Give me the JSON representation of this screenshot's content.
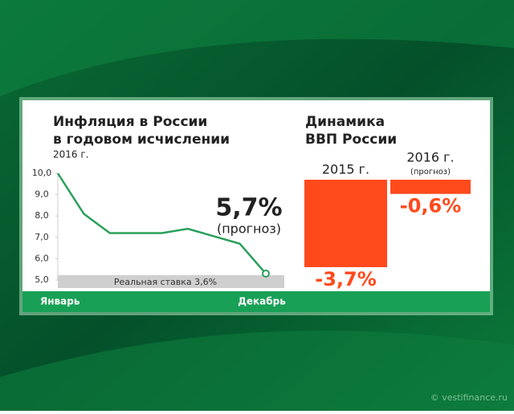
{
  "chart_data": [
    {
      "type": "line",
      "title": [
        "Инфляция в России",
        "в годовом исчислении"
      ],
      "subtitle": "2016 г.",
      "categories": [
        "Январь",
        null,
        null,
        null,
        null,
        null,
        null,
        null,
        "Декабрь"
      ],
      "values": [
        10.0,
        8.1,
        7.2,
        7.2,
        7.2,
        7.4,
        7.05,
        6.7,
        5.3
      ],
      "color": "#2aa05c",
      "ylim": [
        5,
        10
      ],
      "yticks": [
        {
          "value": 10,
          "label": "10,0"
        },
        {
          "value": 9,
          "label": "9,0"
        },
        {
          "value": 8,
          "label": "8,0"
        },
        {
          "value": 7,
          "label": "7,0"
        },
        {
          "value": 6,
          "label": "6,0"
        },
        {
          "value": 5,
          "label": "5,0"
        }
      ],
      "annotations": [
        "5,7%",
        "(прогноз)",
        "Реальная ставка 3,6%"
      ]
    },
    {
      "type": "bar",
      "title": [
        "Динамика",
        "ВВП России"
      ],
      "categories": [
        "2015 г.",
        "2016 г."
      ],
      "category_notes": [
        null,
        "(прогноз)"
      ],
      "values": [
        -3.7,
        -0.6
      ],
      "value_labels": [
        "-3,7%",
        "-0,6%"
      ],
      "color": "#ff4a1c"
    }
  ],
  "watermark": "© vestifinance.ru"
}
